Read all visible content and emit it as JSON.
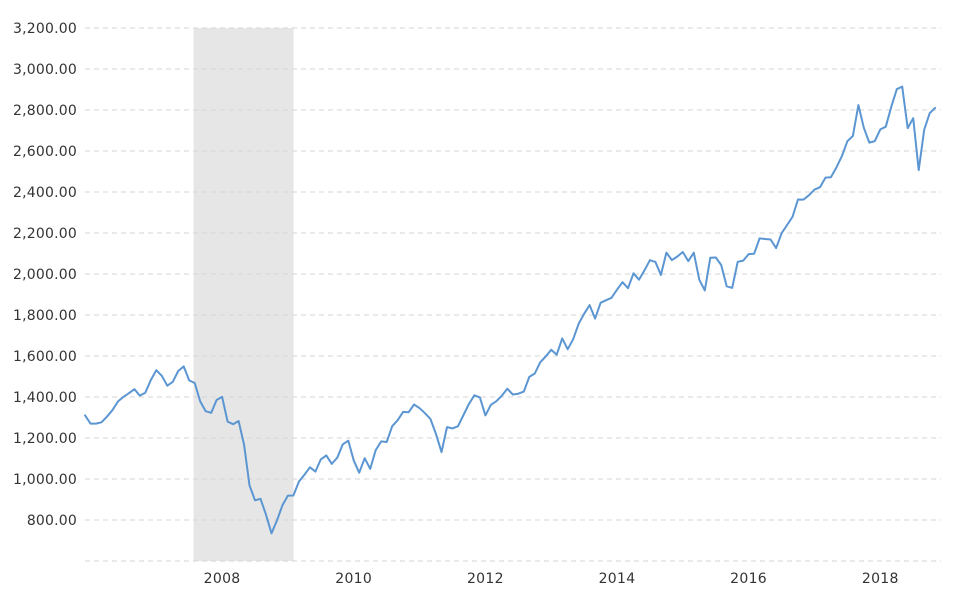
{
  "chart_data": {
    "type": "line",
    "title": "",
    "legend": "none",
    "grid": "horizontal-dashed",
    "x_axis": {
      "tick_labels": [
        "2008",
        "2010",
        "2012",
        "2014",
        "2016",
        "2018"
      ],
      "tick_years": [
        2008,
        2010,
        2012,
        2014,
        2016,
        2018
      ],
      "domain_decimal_years": [
        2006.25,
        2019.21
      ],
      "tick_label_offset_years": 0.333
    },
    "y_axis": {
      "tick_labels": [
        "800.00",
        "1,000.00",
        "1,200.00",
        "1,400.00",
        "1,600.00",
        "1,800.00",
        "2,000.00",
        "2,200.00",
        "2,400.00",
        "2,600.00",
        "2,800.00",
        "3,000.00",
        "3,200.00"
      ],
      "tick_values": [
        800,
        1000,
        1200,
        1400,
        1600,
        1800,
        2000,
        2200,
        2400,
        2600,
        2800,
        3000,
        3200
      ],
      "gridline_values": [
        600,
        800,
        1000,
        1200,
        1400,
        1600,
        1800,
        2000,
        2200,
        2400,
        2600,
        2800,
        3000,
        3200
      ],
      "domain": [
        600,
        3200
      ]
    },
    "recession_band": {
      "start_decimal_year": 2007.9,
      "end_decimal_year": 2009.42,
      "color": "#e6e6e6"
    },
    "series": [
      {
        "name": "index-price",
        "color": "#5b96d2",
        "line_width": 2,
        "start": "2006-04",
        "frequency": "monthly",
        "values": [
          1310.61,
          1270.09,
          1270.2,
          1276.66,
          1303.82,
          1335.85,
          1377.94,
          1400.63,
          1418.3,
          1438.24,
          1406.82,
          1420.86,
          1482.37,
          1530.62,
          1503.35,
          1455.27,
          1473.99,
          1526.75,
          1549.38,
          1481.14,
          1468.36,
          1378.55,
          1330.63,
          1322.7,
          1385.59,
          1400.38,
          1280.0,
          1267.38,
          1282.83,
          1166.36,
          968.75,
          896.24,
          903.25,
          825.88,
          735.09,
          797.87,
          872.81,
          919.14,
          919.32,
          987.48,
          1020.62,
          1057.08,
          1036.19,
          1095.63,
          1115.1,
          1073.87,
          1104.49,
          1169.43,
          1186.69,
          1089.41,
          1030.71,
          1101.6,
          1049.33,
          1141.2,
          1183.26,
          1180.55,
          1257.64,
          1286.12,
          1327.22,
          1325.83,
          1363.61,
          1345.2,
          1320.64,
          1292.28,
          1218.89,
          1131.42,
          1253.3,
          1246.96,
          1257.6,
          1312.41,
          1365.68,
          1408.47,
          1397.91,
          1310.33,
          1362.16,
          1379.32,
          1406.58,
          1440.67,
          1412.16,
          1416.18,
          1426.19,
          1498.11,
          1514.68,
          1569.19,
          1597.57,
          1630.74,
          1606.28,
          1685.73,
          1632.97,
          1681.55,
          1756.54,
          1805.81,
          1848.36,
          1782.59,
          1859.45,
          1872.34,
          1883.95,
          1923.57,
          1960.23,
          1930.67,
          2003.37,
          1972.29,
          2018.05,
          2067.56,
          2058.9,
          1994.99,
          2104.5,
          2067.89,
          2085.51,
          2107.39,
          2063.11,
          2103.84,
          1972.18,
          1920.03,
          2079.36,
          2080.41,
          2043.94,
          1940.24,
          1932.23,
          2059.74,
          2065.3,
          2096.96,
          2098.86,
          2173.6,
          2170.95,
          2168.27,
          2126.15,
          2198.81,
          2238.83,
          2278.87,
          2363.64,
          2362.72,
          2384.2,
          2411.8,
          2423.41,
          2470.3,
          2471.65,
          2519.36,
          2575.26,
          2647.58,
          2673.61,
          2823.81,
          2713.83,
          2640.87,
          2648.05,
          2705.27,
          2718.37,
          2816.29,
          2901.52,
          2913.98,
          2711.74,
          2760.17,
          2506.85,
          2704.1,
          2784.49,
          2810.0
        ]
      }
    ]
  },
  "colors": {
    "background": "#ffffff",
    "gridline": "#d5d5d5",
    "axis_text": "#333333"
  }
}
